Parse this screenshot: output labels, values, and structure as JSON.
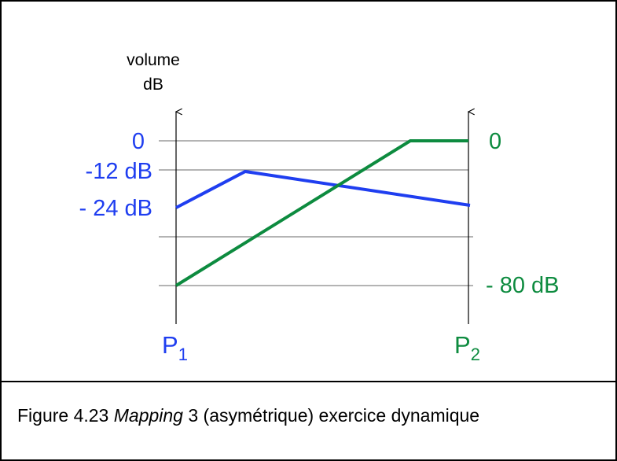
{
  "axis_label": {
    "line1": "volume",
    "line2": "dB"
  },
  "left_labels": [
    "0",
    "-12 dB",
    "- 24 dB"
  ],
  "right_labels": [
    "0",
    "- 80 dB"
  ],
  "points": [
    {
      "name": "P",
      "sub": "1"
    },
    {
      "name": "P",
      "sub": "2"
    }
  ],
  "caption": {
    "prefix": "Figure 4.23 ",
    "emphasis": "Mapping",
    "suffix": " 3 (asymétrique) exercice dynamique"
  }
}
